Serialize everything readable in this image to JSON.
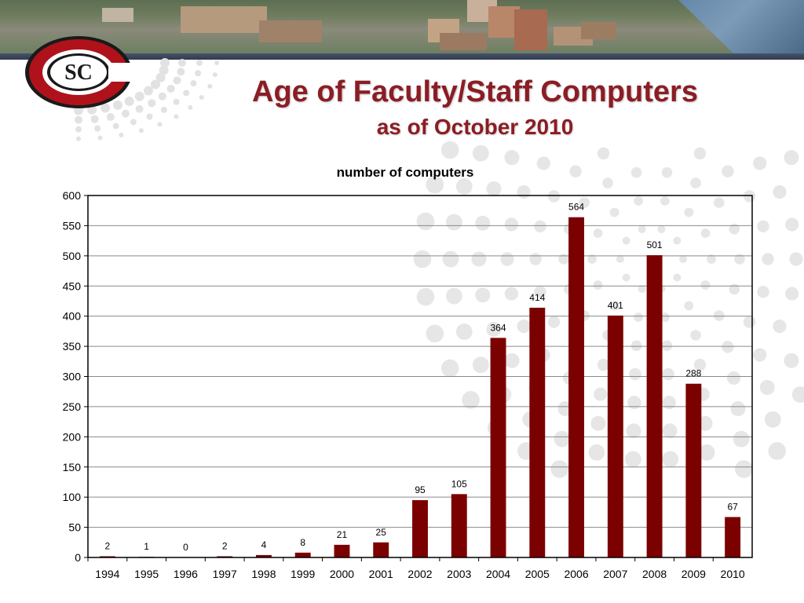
{
  "slide": {
    "title": "Age of Faculty/Staff Computers",
    "subtitle": "as of October 2010",
    "logo_text": "SC"
  },
  "colors": {
    "title": "#8b1d24",
    "bar": "#7b0000",
    "logo_red": "#b0121b",
    "band": "#3a4558"
  },
  "chart_data": {
    "type": "bar",
    "title": "number of computers",
    "xlabel": "",
    "ylabel": "",
    "categories": [
      "1994",
      "1995",
      "1996",
      "1997",
      "1998",
      "1999",
      "2000",
      "2001",
      "2002",
      "2003",
      "2004",
      "2005",
      "2006",
      "2007",
      "2008",
      "2009",
      "2010"
    ],
    "values": [
      2,
      1,
      0,
      2,
      4,
      8,
      21,
      25,
      95,
      105,
      364,
      414,
      564,
      401,
      501,
      288,
      67
    ],
    "ylim": [
      0,
      600
    ],
    "yticks": [
      0,
      50,
      100,
      150,
      200,
      250,
      300,
      350,
      400,
      450,
      500,
      550,
      600
    ],
    "grid": true,
    "legend": "none",
    "data_labels": true
  }
}
